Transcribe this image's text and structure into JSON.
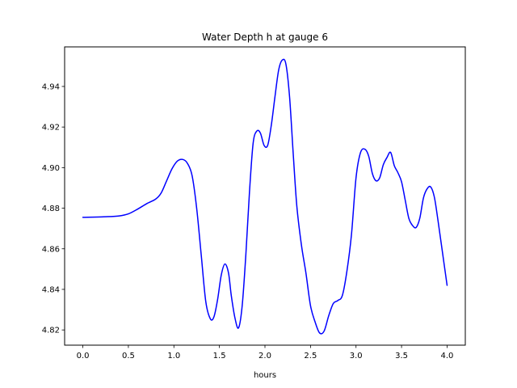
{
  "chart_data": {
    "type": "line",
    "title": "Water Depth h at gauge 6",
    "xlabel": "hours",
    "ylabel": "",
    "xlim": [
      -0.2,
      4.2
    ],
    "ylim": [
      4.8125,
      4.9595
    ],
    "xticks": [
      0.0,
      0.5,
      1.0,
      1.5,
      2.0,
      2.5,
      3.0,
      3.5,
      4.0
    ],
    "xtick_labels": [
      "0.0",
      "0.5",
      "1.0",
      "1.5",
      "2.0",
      "2.5",
      "3.0",
      "3.5",
      "4.0"
    ],
    "yticks": [
      4.82,
      4.84,
      4.86,
      4.88,
      4.9,
      4.92,
      4.94
    ],
    "ytick_labels": [
      "4.82",
      "4.84",
      "4.86",
      "4.88",
      "4.90",
      "4.92",
      "4.94"
    ],
    "grid": false,
    "line_color": "#0000ff",
    "series": [
      {
        "x": [
          0.0,
          0.25,
          0.4,
          0.5,
          0.6,
          0.7,
          0.8,
          0.86,
          0.92,
          0.98,
          1.04,
          1.1,
          1.15,
          1.2,
          1.25,
          1.3,
          1.35,
          1.4,
          1.44,
          1.48,
          1.52,
          1.56,
          1.6,
          1.63,
          1.67,
          1.71,
          1.75,
          1.79,
          1.83,
          1.87,
          1.91,
          1.95,
          1.99,
          2.03,
          2.07,
          2.11,
          2.15,
          2.19,
          2.23,
          2.27,
          2.31,
          2.35,
          2.4,
          2.45,
          2.5,
          2.55,
          2.6,
          2.65,
          2.7,
          2.75,
          2.8,
          2.85,
          2.9,
          2.95,
          3.0,
          3.05,
          3.1,
          3.14,
          3.18,
          3.22,
          3.26,
          3.3,
          3.34,
          3.38,
          3.42,
          3.46,
          3.5,
          3.54,
          3.58,
          3.62,
          3.66,
          3.7,
          3.74,
          3.78,
          3.82,
          3.86,
          3.9,
          3.95,
          4.0
        ],
        "y": [
          4.8755,
          4.8758,
          4.8762,
          4.8772,
          4.8795,
          4.8822,
          4.8845,
          4.8875,
          4.8935,
          4.8995,
          4.9033,
          4.904,
          4.902,
          4.896,
          4.88,
          4.857,
          4.834,
          4.8255,
          4.8265,
          4.835,
          4.847,
          4.8525,
          4.848,
          4.837,
          4.826,
          4.821,
          4.832,
          4.857,
          4.888,
          4.912,
          4.918,
          4.917,
          4.911,
          4.911,
          4.921,
          4.935,
          4.948,
          4.953,
          4.951,
          4.935,
          4.907,
          4.881,
          4.862,
          4.848,
          4.832,
          4.824,
          4.8185,
          4.8195,
          4.827,
          4.833,
          4.8345,
          4.837,
          4.849,
          4.867,
          4.895,
          4.9075,
          4.909,
          4.9055,
          4.897,
          4.8935,
          4.895,
          4.9015,
          4.905,
          4.9075,
          4.901,
          4.8975,
          4.893,
          4.884,
          4.875,
          4.8715,
          4.8705,
          4.875,
          4.885,
          4.8895,
          4.8905,
          4.8855,
          4.874,
          4.858,
          4.842
        ]
      }
    ]
  }
}
